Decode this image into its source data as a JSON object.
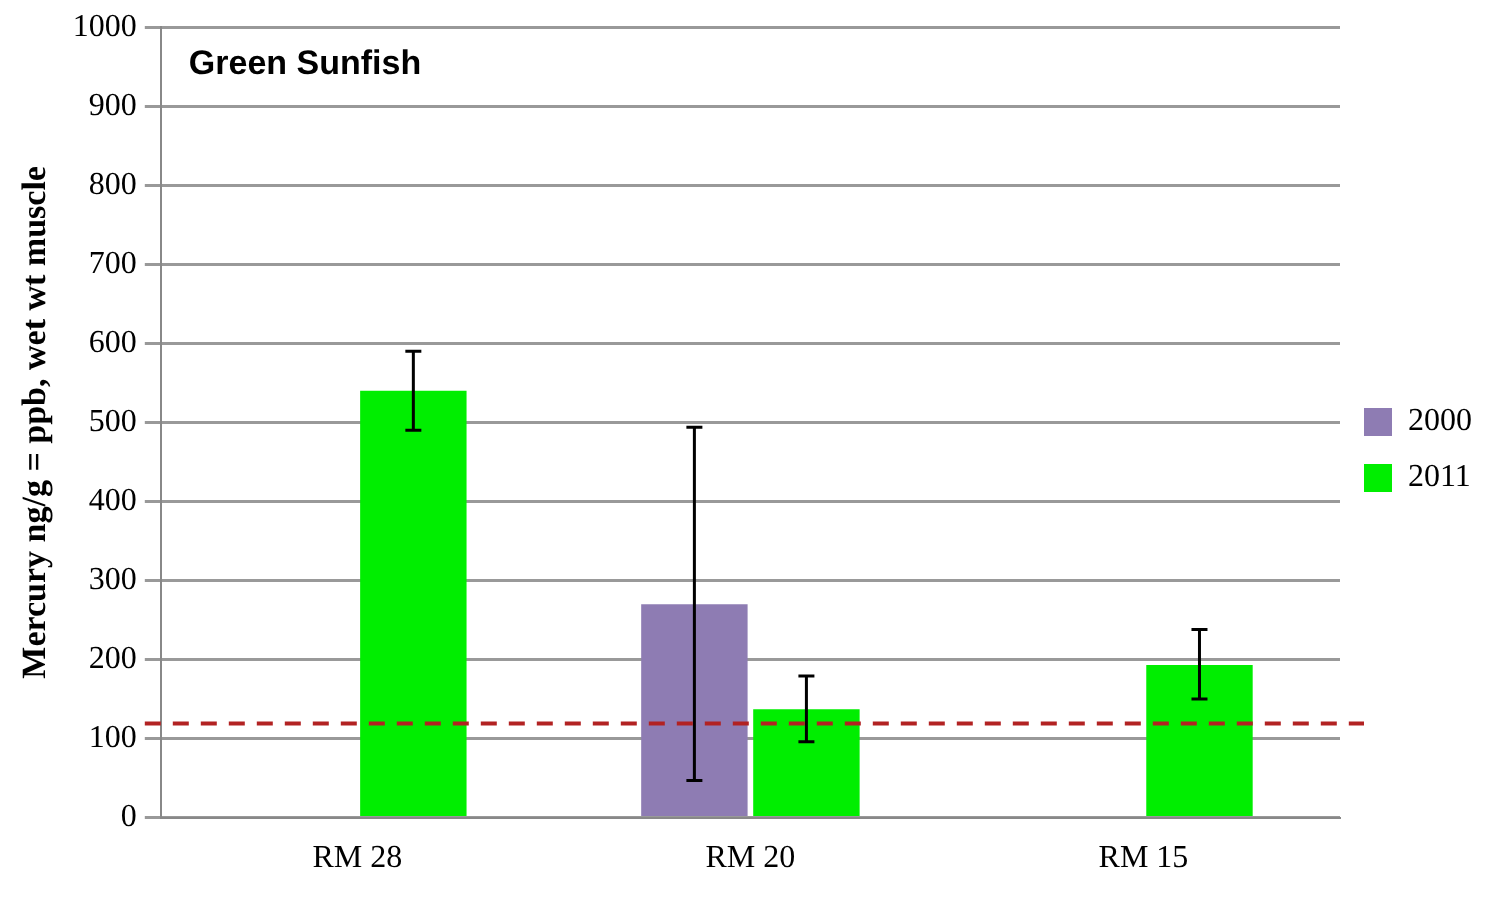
{
  "chart_data": {
    "type": "bar",
    "title": "Green Sunfish",
    "ylabel": "Mercury ng/g = ppb, wet wt muscle",
    "categories": [
      "RM 28",
      "RM 20",
      "RM 15"
    ],
    "series": [
      {
        "name": "2000",
        "color": "#8e7cb3",
        "values": [
          null,
          270,
          null
        ],
        "errors": [
          null,
          [
            47,
            494
          ],
          null
        ]
      },
      {
        "name": "2011",
        "color": "#00ee00",
        "values": [
          540,
          137,
          193
        ],
        "errors": [
          [
            490,
            590
          ],
          [
            96,
            179
          ],
          [
            150,
            238
          ]
        ]
      }
    ],
    "ylim": [
      0,
      1000
    ],
    "yticks": [
      0,
      100,
      200,
      300,
      400,
      500,
      600,
      700,
      800,
      900,
      1000
    ],
    "grid": "y",
    "legend": "right",
    "ref_lines": [
      {
        "axis": "y",
        "value": 119,
        "color": "#b22222",
        "line_style": "dashed"
      }
    ]
  }
}
